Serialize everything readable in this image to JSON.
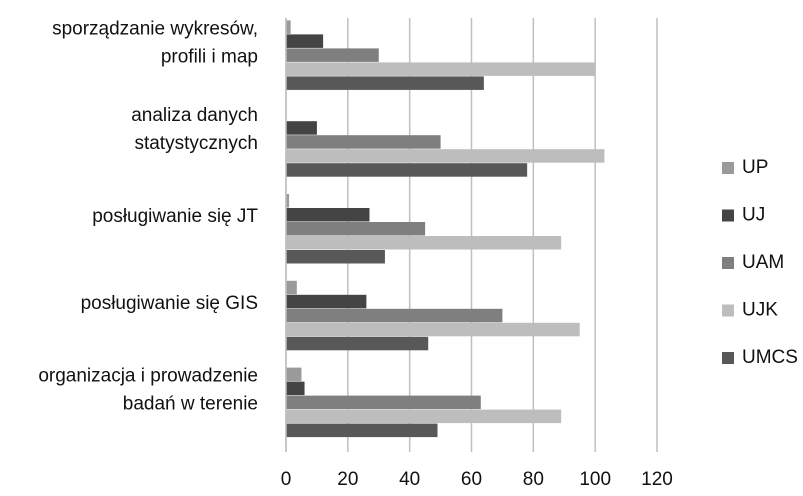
{
  "chart_data": {
    "type": "barh",
    "categories": [
      [
        "sporządzanie wykresów,",
        "profili i map"
      ],
      [
        "analiza danych",
        "statystycznych"
      ],
      [
        "posługiwanie się JT"
      ],
      [
        "posługiwanie się GIS"
      ],
      [
        "organizacja i prowadzenie",
        "badań w terenie"
      ]
    ],
    "series": [
      {
        "name": "UP",
        "color": "#9a9a9a",
        "values": [
          1.5,
          0,
          1,
          3.5,
          5
        ]
      },
      {
        "name": "UJ",
        "color": "#444444",
        "values": [
          12,
          10,
          27,
          26,
          6
        ]
      },
      {
        "name": "UAM",
        "color": "#7f7f7f",
        "values": [
          30,
          50,
          45,
          70,
          63
        ]
      },
      {
        "name": "UJK",
        "color": "#bdbdbd",
        "values": [
          100,
          103,
          89,
          95,
          89
        ]
      },
      {
        "name": "UMCS",
        "color": "#585858",
        "values": [
          64,
          78,
          32,
          46,
          49
        ]
      }
    ],
    "xlim": [
      0,
      120
    ],
    "xticks": [
      0,
      20,
      40,
      60,
      80,
      100,
      120
    ],
    "grid": true,
    "legend": "right"
  }
}
